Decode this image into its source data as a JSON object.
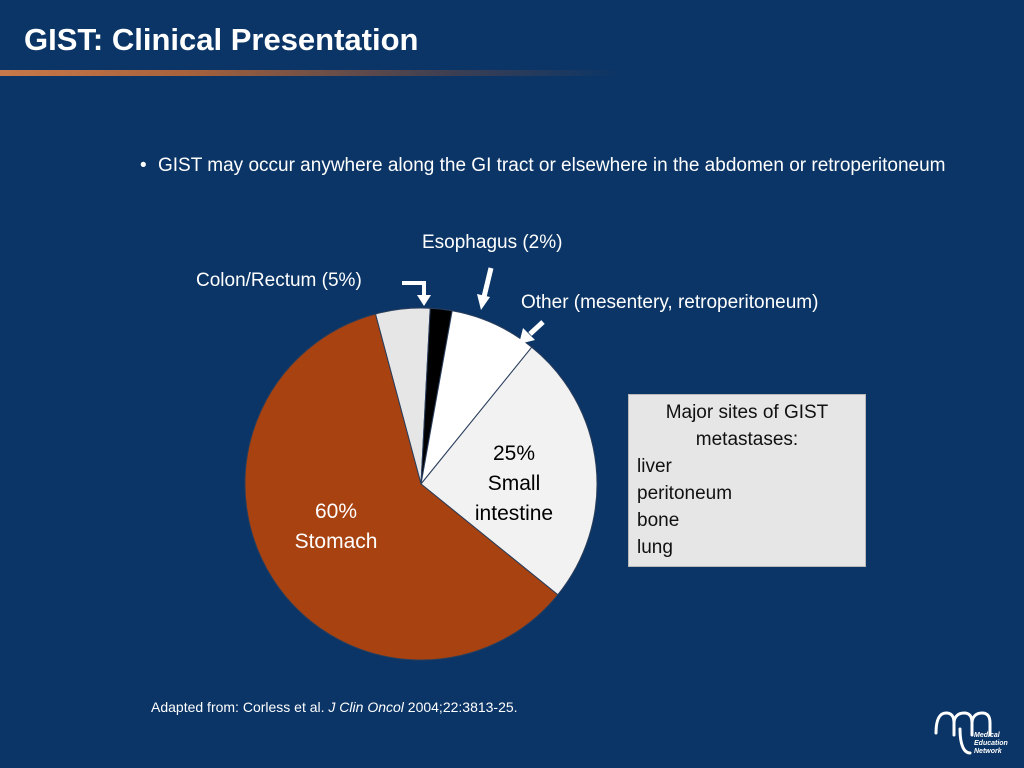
{
  "slide": {
    "title": "GIST: Clinical Presentation",
    "bullet": "GIST may occur anywhere along the GI tract or elsewhere in the abdomen or retroperitoneum",
    "bullet_marker": "•",
    "citation_prefix": "Adapted from: Corless et al. ",
    "citation_journal": "J Clin Oncol",
    "citation_suffix": " 2004;22:3813-25.",
    "logo_text": [
      "Medical",
      "Education",
      "Network"
    ]
  },
  "metastases_box": {
    "title_line1": "Major sites of GIST",
    "title_line2": "metastases:",
    "items": [
      "liver",
      "peritoneum",
      "bone",
      "lung"
    ]
  },
  "chart_data": {
    "type": "pie",
    "title": "",
    "slices": [
      {
        "label": "Colon/Rectum (5%)",
        "value": 5,
        "color": "#e6e6e6"
      },
      {
        "label": "Esophagus (2%)",
        "value": 2,
        "color": "#000000"
      },
      {
        "label": "Other (mesentery, retroperitoneum)",
        "value": 8,
        "color": "#ffffff"
      },
      {
        "label_line1": "25%",
        "label_line2": "Small",
        "label_line3": "intestine",
        "value": 25,
        "color": "#f2f2f2"
      },
      {
        "label_line1": "60%",
        "label_line2": "Stomach",
        "value": 60,
        "color": "#a84210"
      }
    ],
    "start_angle_deg": -15,
    "label_colors": {
      "inside_dark": "#000000",
      "inside_light": "#ffffff"
    }
  }
}
